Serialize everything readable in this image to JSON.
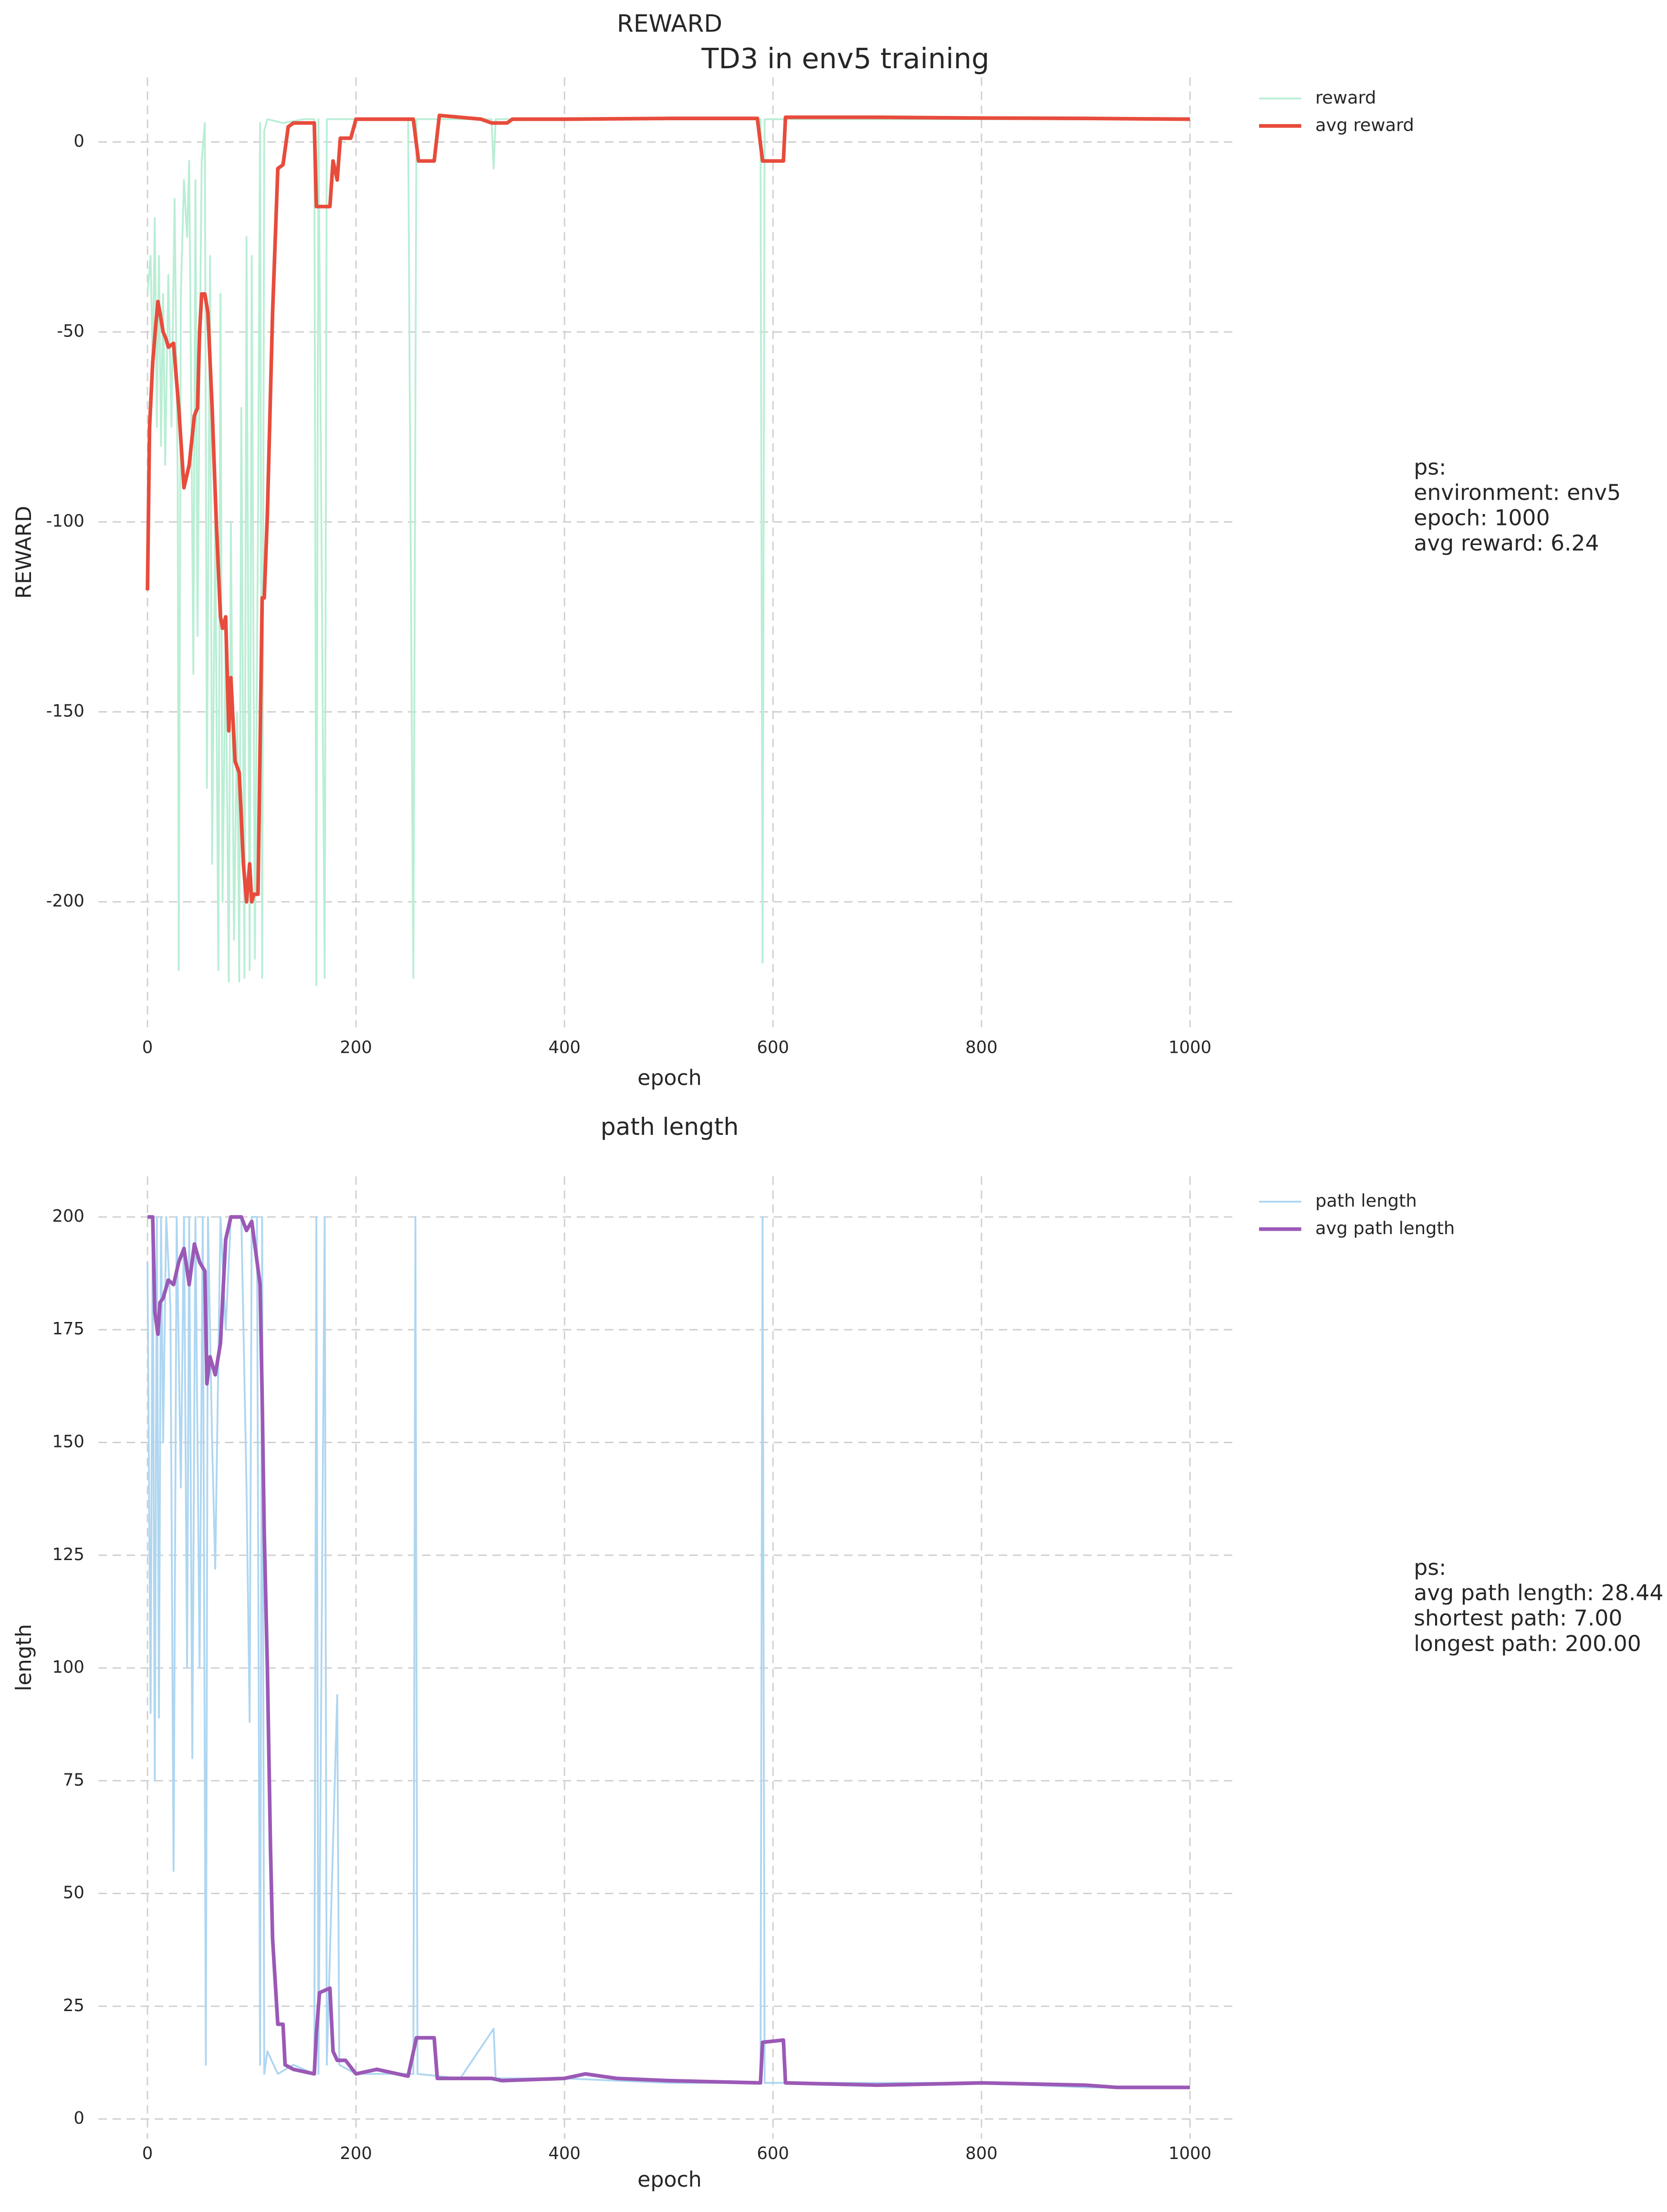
{
  "chart_data": [
    {
      "type": "line",
      "suptitle": "TD3 in env5 training",
      "title": "REWARD",
      "xlabel": "epoch",
      "ylabel": "REWARD",
      "xlim": [
        -47,
        1046
      ],
      "ylim": [
        -233,
        17
      ],
      "xticks": [
        0,
        200,
        400,
        600,
        800,
        1000
      ],
      "yticks": [
        0,
        -50,
        -100,
        -150,
        -200
      ],
      "grid": true,
      "legend": "outside-right",
      "series": [
        {
          "name": "reward",
          "color": "#b9eed5",
          "x": [
            0,
            3,
            5,
            7,
            9,
            11,
            13,
            15,
            17,
            20,
            23,
            26,
            29,
            30,
            32,
            35,
            38,
            40,
            42,
            44,
            46,
            48,
            50,
            52,
            55,
            57,
            60,
            62,
            65,
            68,
            70,
            72,
            75,
            78,
            80,
            83,
            86,
            88,
            90,
            93,
            95,
            98,
            100,
            103,
            106,
            108,
            110,
            112,
            115,
            130,
            150,
            160,
            162,
            164,
            170,
            172,
            200,
            250,
            255,
            258,
            300,
            330,
            332,
            334,
            400,
            500,
            588,
            590,
            592,
            700,
            800,
            900,
            1000
          ],
          "values": [
            -40,
            -30,
            -60,
            -20,
            -75,
            -30,
            -80,
            -40,
            -85,
            -35,
            -75,
            -15,
            -90,
            -218,
            -40,
            -10,
            -25,
            -5,
            -70,
            -140,
            -10,
            -130,
            -60,
            -5,
            5,
            -170,
            -30,
            -190,
            -100,
            -218,
            -40,
            -200,
            -130,
            -221,
            -100,
            -210,
            -150,
            -221,
            -70,
            -220,
            -25,
            -218,
            -30,
            -215,
            -100,
            5,
            -220,
            3,
            6,
            5,
            6,
            6,
            -222,
            6,
            -220,
            6,
            6,
            6,
            -220,
            6,
            6,
            6,
            -7,
            6,
            6,
            6,
            6,
            -216,
            6,
            6,
            6,
            6,
            6
          ]
        },
        {
          "name": "avg reward",
          "color": "#e74c3c",
          "x": [
            0,
            2,
            5,
            8,
            10,
            12,
            15,
            18,
            20,
            25,
            30,
            35,
            40,
            45,
            48,
            50,
            52,
            55,
            58,
            62,
            66,
            70,
            72,
            75,
            78,
            80,
            84,
            88,
            92,
            95,
            98,
            100,
            102,
            106,
            110,
            112,
            115,
            120,
            125,
            130,
            135,
            140,
            160,
            162,
            175,
            178,
            182,
            185,
            195,
            200,
            255,
            260,
            275,
            280,
            320,
            330,
            345,
            350,
            400,
            500,
            585,
            590,
            610,
            612,
            700,
            800,
            900,
            1000
          ],
          "values": [
            -118,
            -75,
            -58,
            -48,
            -42,
            -45,
            -50,
            -52,
            -54,
            -53,
            -70,
            -91,
            -85,
            -72,
            -70,
            -50,
            -40,
            -40,
            -45,
            -70,
            -100,
            -125,
            -128,
            -125,
            -155,
            -141,
            -163,
            -166,
            -190,
            -200,
            -190,
            -200,
            -198,
            -198,
            -120,
            -120,
            -98,
            -45,
            -7,
            -6,
            4,
            5,
            5,
            -17,
            -17,
            -5,
            -10,
            1,
            1,
            6,
            6,
            -5,
            -5,
            7,
            6,
            5,
            5,
            6,
            6,
            6.2,
            6.2,
            -5,
            -5,
            6.5,
            6.5,
            6.3,
            6.2,
            6
          ]
        }
      ],
      "annotation": [
        "ps:",
        "environment: env5",
        "epoch: 1000",
        "avg reward: 6.24"
      ]
    },
    {
      "type": "line",
      "title": "path length",
      "xlabel": "epoch",
      "ylabel": "length",
      "xlim": [
        -47,
        1046
      ],
      "ylim": [
        -4.4,
        209
      ],
      "xticks": [
        0,
        200,
        400,
        600,
        800,
        1000
      ],
      "yticks": [
        0,
        25,
        50,
        75,
        100,
        125,
        150,
        175,
        200
      ],
      "grid": true,
      "legend": "outside-right",
      "series": [
        {
          "name": "path length",
          "color": "#aed6f1",
          "x": [
            0,
            3,
            5,
            7,
            9,
            11,
            13,
            15,
            18,
            22,
            25,
            28,
            32,
            35,
            38,
            40,
            43,
            46,
            50,
            53,
            56,
            58,
            62,
            65,
            70,
            75,
            80,
            85,
            90,
            95,
            98,
            100,
            105,
            108,
            110,
            112,
            115,
            125,
            140,
            160,
            162,
            164,
            170,
            172,
            182,
            184,
            200,
            255,
            257,
            259,
            300,
            332,
            334,
            400,
            500,
            588,
            590,
            592,
            700,
            800,
            900,
            1000
          ],
          "values": [
            190,
            90,
            200,
            75,
            200,
            89,
            200,
            150,
            200,
            180,
            55,
            200,
            140,
            200,
            100,
            200,
            80,
            200,
            100,
            200,
            12,
            200,
            150,
            122,
            200,
            175,
            200,
            200,
            200,
            140,
            88,
            200,
            200,
            12,
            200,
            10,
            15,
            10,
            12,
            10,
            200,
            10,
            200,
            12,
            94,
            12,
            10,
            10,
            200,
            10,
            9,
            20,
            9,
            9,
            8,
            8,
            200,
            8,
            8,
            8,
            7,
            7
          ]
        },
        {
          "name": "avg path length",
          "color": "#9b59b6",
          "x": [
            0,
            5,
            7,
            10,
            12,
            15,
            20,
            25,
            30,
            35,
            40,
            45,
            50,
            55,
            57,
            60,
            65,
            70,
            75,
            80,
            90,
            95,
            100,
            108,
            110,
            112,
            115,
            118,
            120,
            125,
            130,
            132,
            140,
            160,
            162,
            165,
            175,
            178,
            182,
            190,
            200,
            220,
            240,
            250,
            258,
            275,
            278,
            330,
            340,
            400,
            420,
            450,
            500,
            588,
            590,
            610,
            612,
            700,
            800,
            900,
            930,
            1000
          ],
          "values": [
            200,
            200,
            179,
            174,
            181,
            182,
            186,
            185,
            190,
            193,
            185,
            194,
            190,
            188,
            163,
            169,
            165,
            172,
            195,
            200,
            200,
            197,
            199,
            185,
            160,
            130,
            100,
            60,
            40,
            21,
            21,
            12,
            11,
            10,
            19,
            28,
            29,
            15,
            13,
            13,
            10,
            11,
            10,
            9.5,
            18,
            18,
            9,
            9,
            8.5,
            9,
            10,
            9,
            8.5,
            8,
            17,
            17.5,
            8,
            7.5,
            8,
            7.5,
            7,
            7
          ]
        }
      ],
      "annotation": [
        "ps:",
        "avg path length: 28.44",
        "shortest path: 7.00",
        "longest path: 200.00"
      ]
    }
  ]
}
